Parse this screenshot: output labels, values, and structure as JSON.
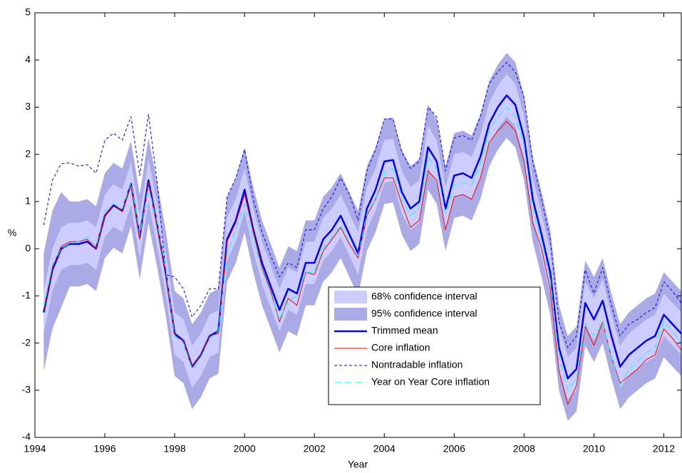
{
  "chart_data": {
    "type": "line",
    "xlabel": "Year",
    "ylabel": "%",
    "xlim": [
      1994,
      2012.5
    ],
    "xticks": [
      1994,
      1996,
      1998,
      2000,
      2002,
      2004,
      2006,
      2008,
      2010,
      2012
    ],
    "ylim": [
      -4,
      5
    ],
    "yticks": [
      -4,
      -3,
      -2,
      -1,
      0,
      1,
      2,
      3,
      4,
      5
    ],
    "grid": false,
    "legend_position": "lower center",
    "x": [
      1994.25,
      1994.5,
      1994.75,
      1995,
      1995.25,
      1995.5,
      1995.75,
      1996,
      1996.25,
      1996.5,
      1996.75,
      1997,
      1997.25,
      1997.5,
      1997.75,
      1998,
      1998.25,
      1998.5,
      1998.75,
      1999,
      1999.25,
      1999.5,
      1999.75,
      2000,
      2000.25,
      2000.5,
      2000.75,
      2001,
      2001.25,
      2001.5,
      2001.75,
      2002,
      2002.25,
      2002.5,
      2002.75,
      2003,
      2003.25,
      2003.5,
      2003.75,
      2004,
      2004.25,
      2004.5,
      2004.75,
      2005,
      2005.25,
      2005.5,
      2005.75,
      2006,
      2006.25,
      2006.5,
      2006.75,
      2007,
      2007.25,
      2007.5,
      2007.75,
      2008,
      2008.25,
      2008.5,
      2008.75,
      2009,
      2009.25,
      2009.5,
      2009.75,
      2010,
      2010.25,
      2010.5,
      2010.75,
      2011,
      2011.25,
      2011.5,
      2011.75,
      2012,
      2012.25,
      2012.5
    ],
    "series": [
      {
        "name": "68% confidence interval",
        "kind": "band",
        "color": "#ccccff",
        "upper": [
          -0.9,
          0.0,
          0.45,
          0.55,
          0.55,
          0.6,
          0.45,
          1.15,
          1.37,
          1.25,
          1.83,
          0.7,
          1.9,
          0.95,
          -0.1,
          -1.35,
          -1.5,
          -2.05,
          -1.8,
          -1.4,
          -1.3,
          0.65,
          1.05,
          1.7,
          0.85,
          0.15,
          -0.35,
          -0.85,
          -0.4,
          -0.5,
          0.15,
          0.15,
          0.65,
          0.85,
          1.15,
          0.75,
          0.35,
          1.3,
          1.7,
          2.3,
          2.33,
          1.65,
          1.3,
          1.45,
          2.6,
          2.3,
          1.3,
          2.0,
          2.05,
          1.95,
          2.4,
          3.1,
          3.45,
          3.7,
          3.5,
          2.8,
          1.5,
          0.75,
          -0.05,
          -1.65,
          -2.3,
          -2.1,
          -0.7,
          -1.05,
          -0.65,
          -1.4,
          -2.05,
          -1.8,
          -1.65,
          -1.5,
          -1.4,
          -0.95,
          -1.15,
          -1.35
        ],
        "lower": [
          -1.8,
          -0.9,
          -0.45,
          -0.35,
          -0.35,
          -0.3,
          -0.45,
          0.25,
          0.47,
          0.35,
          0.93,
          -0.2,
          1.0,
          0.05,
          -1.0,
          -2.25,
          -2.4,
          -2.95,
          -2.7,
          -2.3,
          -2.2,
          -0.25,
          0.15,
          0.8,
          -0.05,
          -0.75,
          -1.25,
          -1.75,
          -1.3,
          -1.4,
          -0.75,
          -0.75,
          -0.25,
          -0.05,
          0.25,
          -0.15,
          -0.55,
          0.4,
          0.8,
          1.4,
          1.43,
          0.75,
          0.4,
          0.55,
          1.7,
          1.4,
          0.4,
          1.1,
          1.15,
          1.05,
          1.5,
          2.2,
          2.55,
          2.8,
          2.6,
          1.9,
          0.6,
          -0.15,
          -0.95,
          -2.55,
          -3.2,
          -3.0,
          -1.6,
          -1.95,
          -1.55,
          -2.3,
          -2.95,
          -2.7,
          -2.55,
          -2.4,
          -2.3,
          -1.85,
          -2.05,
          -2.25
        ]
      },
      {
        "name": "95% confidence interval",
        "kind": "band",
        "color": "#aaaae6",
        "upper": [
          -0.1,
          0.8,
          1.2,
          1.0,
          1.0,
          1.05,
          0.9,
          1.6,
          1.82,
          1.7,
          2.28,
          1.15,
          2.35,
          1.4,
          0.35,
          -0.9,
          -1.05,
          -1.6,
          -1.35,
          -0.95,
          -0.85,
          1.1,
          1.5,
          2.15,
          1.3,
          0.6,
          0.1,
          -0.4,
          0.05,
          -0.05,
          0.6,
          0.6,
          1.1,
          1.3,
          1.6,
          1.2,
          0.8,
          1.75,
          2.15,
          2.75,
          2.78,
          2.1,
          1.75,
          1.9,
          3.05,
          2.75,
          1.75,
          2.45,
          2.5,
          2.4,
          2.85,
          3.55,
          3.9,
          4.15,
          3.95,
          3.25,
          1.95,
          1.2,
          0.4,
          -1.2,
          -1.85,
          -1.65,
          -0.25,
          -0.6,
          -0.2,
          -0.95,
          -1.6,
          -1.35,
          -1.2,
          -1.05,
          -0.95,
          -0.5,
          -0.7,
          -0.9
        ],
        "lower": [
          -2.6,
          -1.7,
          -1.25,
          -0.8,
          -0.8,
          -0.75,
          -0.9,
          -0.2,
          0.02,
          -0.1,
          0.48,
          -0.65,
          0.55,
          -0.4,
          -1.45,
          -2.7,
          -2.85,
          -3.4,
          -3.15,
          -2.75,
          -2.65,
          -0.7,
          -0.3,
          0.35,
          -0.5,
          -1.2,
          -1.7,
          -2.2,
          -1.75,
          -1.85,
          -1.2,
          -1.2,
          -0.7,
          -0.5,
          -0.2,
          -0.6,
          -1.0,
          -0.05,
          0.35,
          0.95,
          0.98,
          0.3,
          -0.05,
          0.1,
          1.25,
          0.95,
          -0.05,
          0.65,
          0.7,
          0.6,
          1.05,
          1.75,
          2.1,
          2.35,
          2.15,
          1.45,
          0.15,
          -0.6,
          -1.4,
          -3.0,
          -3.65,
          -3.45,
          -2.05,
          -2.4,
          -2.0,
          -2.75,
          -3.4,
          -3.15,
          -3.0,
          -2.85,
          -2.75,
          -2.3,
          -2.5,
          -2.7
        ]
      },
      {
        "name": "Trimmed mean",
        "kind": "line",
        "color": "#0000ff",
        "width": 2.5,
        "values": [
          -1.35,
          -0.45,
          0.0,
          0.1,
          0.1,
          0.15,
          0.0,
          0.7,
          0.92,
          0.8,
          1.38,
          0.25,
          1.45,
          0.5,
          -0.55,
          -1.8,
          -1.95,
          -2.5,
          -2.25,
          -1.85,
          -1.75,
          0.2,
          0.6,
          1.25,
          0.4,
          -0.3,
          -0.8,
          -1.3,
          -0.85,
          -0.95,
          -0.3,
          -0.3,
          0.2,
          0.4,
          0.7,
          0.3,
          -0.1,
          0.85,
          1.25,
          1.85,
          1.88,
          1.2,
          0.85,
          1.0,
          2.15,
          1.85,
          0.85,
          1.55,
          1.6,
          1.5,
          1.95,
          2.65,
          3.0,
          3.25,
          3.05,
          2.35,
          1.05,
          0.3,
          -0.5,
          -2.1,
          -2.75,
          -2.55,
          -1.15,
          -1.5,
          -1.1,
          -1.85,
          -2.5,
          -2.25,
          -2.1,
          -1.95,
          -1.85,
          -1.4,
          -1.6,
          -1.8
        ]
      },
      {
        "name": "Core inflation",
        "kind": "line",
        "color": "#ff0000",
        "width": 1,
        "values": [
          -1.3,
          -0.4,
          0.05,
          0.15,
          0.15,
          0.2,
          0.0,
          0.7,
          0.95,
          0.78,
          1.35,
          0.2,
          1.4,
          0.45,
          -0.55,
          -1.85,
          -1.95,
          -2.5,
          -2.25,
          -1.85,
          -1.8,
          0.15,
          0.55,
          1.15,
          0.35,
          -0.4,
          -0.9,
          -1.55,
          -1.05,
          -1.2,
          -0.5,
          -0.55,
          -0.05,
          0.2,
          0.45,
          0.1,
          -0.2,
          0.7,
          1.05,
          1.5,
          1.5,
          0.95,
          0.45,
          0.6,
          1.65,
          1.45,
          0.4,
          1.1,
          1.15,
          1.05,
          1.5,
          2.25,
          2.5,
          2.7,
          2.5,
          1.85,
          0.55,
          0.0,
          -0.85,
          -2.6,
          -3.3,
          -2.9,
          -1.65,
          -2.05,
          -1.55,
          -2.3,
          -2.85,
          -2.7,
          -2.55,
          -2.35,
          -2.25,
          -1.7,
          -1.9,
          -2.15
        ]
      },
      {
        "name": "Nontradable inflation",
        "kind": "line",
        "color": "#0000ff",
        "width": 1,
        "dash": "4 3",
        "values": [
          0.5,
          1.45,
          1.8,
          1.82,
          1.75,
          1.78,
          1.6,
          2.3,
          2.45,
          2.3,
          2.8,
          1.55,
          2.85,
          1.4,
          -0.55,
          -0.6,
          -0.85,
          -1.45,
          -1.2,
          -0.85,
          -0.85,
          1.1,
          1.5,
          2.1,
          1.05,
          0.35,
          -0.15,
          -0.6,
          -0.3,
          -0.4,
          0.4,
          0.4,
          0.85,
          1.1,
          1.5,
          1.15,
          0.6,
          1.65,
          2.1,
          2.75,
          2.75,
          2.05,
          1.7,
          1.85,
          3.0,
          2.8,
          1.65,
          2.35,
          2.4,
          2.3,
          2.8,
          3.5,
          3.75,
          3.95,
          3.75,
          3.2,
          1.85,
          1.05,
          0.2,
          -1.55,
          -2.1,
          -1.85,
          -0.45,
          -0.95,
          -0.4,
          -1.2,
          -1.85,
          -1.6,
          -1.5,
          -1.35,
          -1.25,
          -0.7,
          -0.9,
          -1.15
        ]
      },
      {
        "name": "Year on Year Core inflation",
        "kind": "line",
        "color": "#00ffff",
        "width": 1,
        "dash": "10 5",
        "values": [
          -1.25,
          -0.35,
          0.0,
          0.1,
          0.15,
          0.25,
          0.05,
          0.8,
          0.95,
          0.85,
          1.4,
          0.3,
          1.3,
          0.55,
          -0.45,
          -1.85,
          -2.0,
          -2.55,
          -2.3,
          -1.9,
          -1.75,
          -0.1,
          0.4,
          0.95,
          0.2,
          -0.45,
          -0.95,
          -1.5,
          -1.1,
          -1.0,
          -0.5,
          -0.5,
          0.0,
          0.25,
          0.5,
          0.15,
          -0.15,
          0.75,
          1.05,
          1.6,
          1.7,
          1.05,
          0.7,
          0.85,
          1.95,
          1.7,
          0.75,
          1.35,
          1.4,
          1.35,
          1.8,
          2.5,
          2.8,
          3.0,
          2.8,
          2.2,
          0.85,
          0.15,
          -0.65,
          -2.3,
          -3.0,
          -2.75,
          -1.6,
          -1.85,
          -1.55,
          -2.3,
          -2.9,
          -2.55,
          -2.4,
          -2.2,
          -2.1,
          -1.55,
          -1.75,
          -2.0
        ]
      }
    ]
  }
}
